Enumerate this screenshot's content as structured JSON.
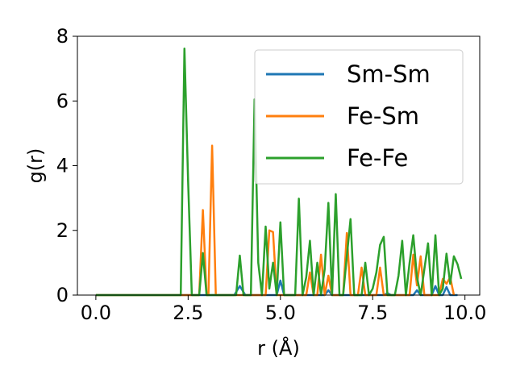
{
  "chart_data": {
    "type": "line",
    "title": "",
    "xlabel": "r (Å)",
    "ylabel": "g(r)",
    "xlim": [
      -0.5,
      10.4
    ],
    "ylim": [
      0,
      8
    ],
    "xticks": [
      0.0,
      2.5,
      5.0,
      7.5,
      10.0
    ],
    "xtick_labels": [
      "0.0",
      "2.5",
      "5.0",
      "7.5",
      "10.0"
    ],
    "yticks": [
      0,
      2,
      4,
      6,
      8
    ],
    "ytick_labels": [
      "0",
      "2",
      "4",
      "6",
      "8"
    ],
    "grid": false,
    "legend_position": "upper right",
    "series": [
      {
        "name": "Sm-Sm",
        "color": "#1f77b4",
        "points": [
          [
            0.0,
            0
          ],
          [
            3.75,
            0
          ],
          [
            3.9,
            0.28
          ],
          [
            4.05,
            0
          ],
          [
            4.9,
            0
          ],
          [
            5.0,
            0.45
          ],
          [
            5.1,
            0
          ],
          [
            6.2,
            0
          ],
          [
            6.3,
            0.15
          ],
          [
            6.4,
            0
          ],
          [
            7.8,
            0
          ],
          [
            7.9,
            0.06
          ],
          [
            8.0,
            0
          ],
          [
            8.6,
            0
          ],
          [
            8.7,
            0.15
          ],
          [
            8.8,
            0
          ],
          [
            9.1,
            0
          ],
          [
            9.2,
            0.28
          ],
          [
            9.3,
            0
          ],
          [
            9.4,
            0
          ],
          [
            9.5,
            0.25
          ],
          [
            9.6,
            0
          ],
          [
            9.8,
            0
          ]
        ]
      },
      {
        "name": "Fe-Sm",
        "color": "#ff7f0e",
        "points": [
          [
            0.0,
            0
          ],
          [
            2.8,
            0
          ],
          [
            2.9,
            2.63
          ],
          [
            3.0,
            0
          ],
          [
            3.05,
            0
          ],
          [
            3.15,
            4.62
          ],
          [
            3.25,
            0
          ],
          [
            4.6,
            0
          ],
          [
            4.7,
            2.0
          ],
          [
            4.8,
            1.95
          ],
          [
            4.9,
            0
          ],
          [
            5.7,
            0
          ],
          [
            5.8,
            0.7
          ],
          [
            5.9,
            0
          ],
          [
            6.0,
            0
          ],
          [
            6.1,
            1.25
          ],
          [
            6.2,
            0
          ],
          [
            6.3,
            0.6
          ],
          [
            6.4,
            0
          ],
          [
            6.7,
            0
          ],
          [
            6.8,
            1.92
          ],
          [
            6.9,
            0
          ],
          [
            7.1,
            0
          ],
          [
            7.2,
            0.85
          ],
          [
            7.3,
            0
          ],
          [
            7.6,
            0
          ],
          [
            7.7,
            0.85
          ],
          [
            7.8,
            0
          ],
          [
            8.5,
            0
          ],
          [
            8.6,
            1.25
          ],
          [
            8.7,
            0.3
          ],
          [
            8.8,
            1.2
          ],
          [
            8.9,
            0
          ],
          [
            9.3,
            0
          ],
          [
            9.4,
            0.5
          ],
          [
            9.5,
            0.35
          ],
          [
            9.6,
            0.55
          ],
          [
            9.7,
            0
          ]
        ]
      },
      {
        "name": "Fe-Fe",
        "color": "#2ca02c",
        "points": [
          [
            0.0,
            0
          ],
          [
            2.3,
            0
          ],
          [
            2.4,
            7.62
          ],
          [
            2.5,
            3.5
          ],
          [
            2.6,
            0
          ],
          [
            2.8,
            0
          ],
          [
            2.9,
            1.3
          ],
          [
            3.0,
            0
          ],
          [
            3.8,
            0
          ],
          [
            3.9,
            1.22
          ],
          [
            4.0,
            0
          ],
          [
            4.2,
            0
          ],
          [
            4.3,
            6.05
          ],
          [
            4.4,
            1.0
          ],
          [
            4.5,
            0
          ],
          [
            4.6,
            2.12
          ],
          [
            4.7,
            0.2
          ],
          [
            4.8,
            1.0
          ],
          [
            4.9,
            0
          ],
          [
            5.0,
            2.25
          ],
          [
            5.1,
            0
          ],
          [
            5.4,
            0
          ],
          [
            5.5,
            2.98
          ],
          [
            5.6,
            0
          ],
          [
            5.7,
            0.55
          ],
          [
            5.8,
            1.68
          ],
          [
            5.9,
            0
          ],
          [
            6.0,
            1.0
          ],
          [
            6.1,
            0
          ],
          [
            6.2,
            0.8
          ],
          [
            6.3,
            2.85
          ],
          [
            6.4,
            0
          ],
          [
            6.5,
            3.12
          ],
          [
            6.6,
            0
          ],
          [
            6.7,
            0
          ],
          [
            6.8,
            1.2
          ],
          [
            6.9,
            2.35
          ],
          [
            7.0,
            0
          ],
          [
            7.2,
            0
          ],
          [
            7.3,
            1.0
          ],
          [
            7.4,
            0
          ],
          [
            7.5,
            0.2
          ],
          [
            7.6,
            0.7
          ],
          [
            7.7,
            1.55
          ],
          [
            7.8,
            1.8
          ],
          [
            7.9,
            0
          ],
          [
            8.1,
            0
          ],
          [
            8.2,
            0.6
          ],
          [
            8.3,
            1.68
          ],
          [
            8.4,
            0
          ],
          [
            8.5,
            1.0
          ],
          [
            8.6,
            1.85
          ],
          [
            8.7,
            0.55
          ],
          [
            8.8,
            0
          ],
          [
            8.9,
            0.8
          ],
          [
            9.0,
            1.6
          ],
          [
            9.1,
            0
          ],
          [
            9.2,
            1.85
          ],
          [
            9.3,
            0
          ],
          [
            9.4,
            0.2
          ],
          [
            9.5,
            1.28
          ],
          [
            9.6,
            0.35
          ],
          [
            9.7,
            1.2
          ],
          [
            9.8,
            0.95
          ],
          [
            9.9,
            0.5
          ]
        ]
      }
    ]
  }
}
